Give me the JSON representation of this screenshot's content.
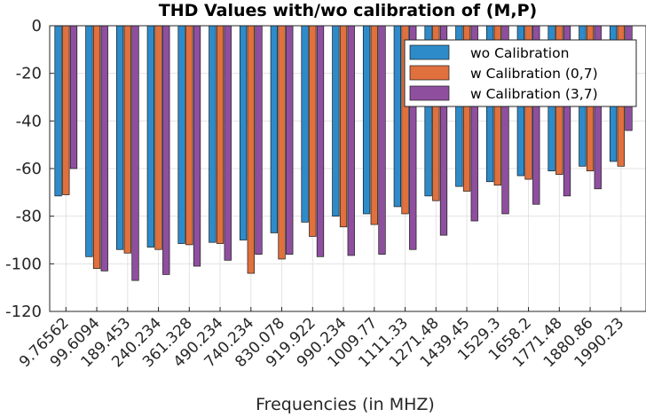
{
  "chart_data": {
    "type": "bar",
    "title": "THD Values with/wo calibration of (M,P)",
    "xlabel": "Frequencies (in MHZ)",
    "ylabel": "",
    "ylim": [
      -120,
      0
    ],
    "yticks": [
      0,
      -20,
      -40,
      -60,
      -80,
      -100,
      -120
    ],
    "grid": true,
    "legend_position": "top-right",
    "categories": [
      "9.76562",
      "99.6094",
      "189.453",
      "240.234",
      "361.328",
      "490.234",
      "740.234",
      "830.078",
      "919.922",
      "990.234",
      "1009.77",
      "1111.33",
      "1271.48",
      "1439.45",
      "1529.3",
      "1658.2",
      "1771.48",
      "1880.86",
      "1990.23"
    ],
    "series": [
      {
        "name": "wo Calibration",
        "color": "#2e8bca",
        "values": [
          -71.5,
          -97,
          -94,
          -93,
          -91.5,
          -91,
          -90,
          -87,
          -82.5,
          -80,
          -79,
          -76,
          -71.5,
          -67.5,
          -65.5,
          -63,
          -61,
          -59,
          -57
        ]
      },
      {
        "name": "w Calibration (0,7)",
        "color": "#e0703d",
        "values": [
          -71,
          -102,
          -95.5,
          -94,
          -92,
          -91.5,
          -104,
          -98,
          -88.5,
          -84.5,
          -83.5,
          -79,
          -73.5,
          -69.5,
          -67,
          -64.5,
          -62.5,
          -61,
          -59
        ]
      },
      {
        "name": "w Calibration (3,7)",
        "color": "#8f4f9f",
        "values": [
          -60,
          -103,
          -107,
          -104.5,
          -101,
          -98.5,
          -96,
          -96,
          -97,
          -96.5,
          -96,
          -94,
          -88,
          -82,
          -79,
          -75,
          -71.5,
          -68.5,
          -44
        ]
      }
    ]
  }
}
